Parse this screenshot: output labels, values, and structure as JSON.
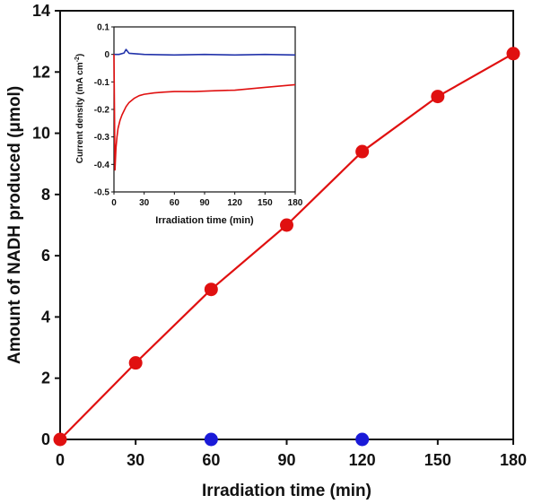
{
  "chart_data": [
    {
      "type": "line",
      "xlabel": "Irradiation time (min)",
      "ylabel": "Amount of NADH produced (μmol)",
      "xlim": [
        0,
        180
      ],
      "ylim": [
        0,
        14
      ],
      "xticks": [
        "0",
        "30",
        "60",
        "90",
        "120",
        "150",
        "180"
      ],
      "yticks": [
        "0",
        "2",
        "4",
        "6",
        "8",
        "10",
        "12",
        "14"
      ],
      "grid": false,
      "series": [
        {
          "color": "#e01010",
          "marker": "circle",
          "x": [
            0,
            30,
            60,
            90,
            120,
            150,
            180
          ],
          "y": [
            0,
            2.5,
            4.9,
            7.0,
            9.4,
            11.2,
            12.6
          ]
        },
        {
          "color": "#1a1ad8",
          "marker": "circle",
          "line": false,
          "x": [
            60,
            120
          ],
          "y": [
            0,
            0
          ]
        }
      ]
    },
    {
      "type": "line",
      "xlabel": "Irradiation time (min)",
      "ylabel_parts": [
        "Current density (mA cm",
        "-2",
        ")"
      ],
      "xlim": [
        0,
        180
      ],
      "ylim": [
        -0.5,
        0.1
      ],
      "xticks": [
        "0",
        "30",
        "60",
        "90",
        "120",
        "150",
        "180"
      ],
      "yticks": [
        "0.1",
        "0",
        "-0.1",
        "-0.2",
        "-0.3",
        "-0.4",
        "-0.5"
      ],
      "grid": false,
      "series": [
        {
          "color": "#2233aa",
          "x": [
            0,
            5,
            10,
            12,
            15,
            30,
            60,
            90,
            120,
            150,
            180
          ],
          "y": [
            0.0,
            0.0,
            0.005,
            0.018,
            0.004,
            0.0,
            -0.002,
            0.0,
            -0.002,
            0.0,
            -0.002
          ]
        },
        {
          "color": "#e01010",
          "x": [
            0,
            0.5,
            1,
            1.5,
            2,
            3,
            4,
            6,
            8,
            10,
            12,
            15,
            20,
            25,
            30,
            40,
            50,
            60,
            80,
            100,
            120,
            150,
            180
          ],
          "y": [
            0.0,
            -0.2,
            -0.42,
            -0.38,
            -0.34,
            -0.3,
            -0.27,
            -0.24,
            -0.22,
            -0.205,
            -0.19,
            -0.175,
            -0.16,
            -0.15,
            -0.145,
            -0.14,
            -0.137,
            -0.135,
            -0.135,
            -0.132,
            -0.13,
            -0.12,
            -0.11
          ]
        }
      ]
    }
  ]
}
